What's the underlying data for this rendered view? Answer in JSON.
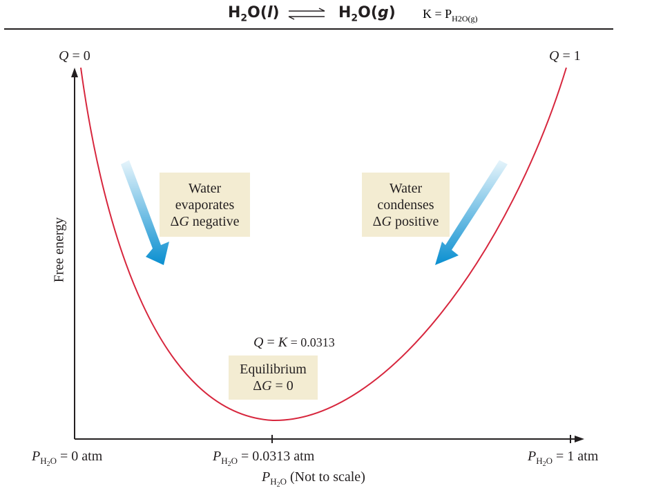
{
  "equation": {
    "reactant": "H",
    "reactant_sub": "2",
    "reactant_rest": "O(",
    "reactant_phase": "l",
    "reactant_close": ")",
    "product": "H",
    "product_sub": "2",
    "product_rest": "O(",
    "product_phase": "g",
    "product_close": ")"
  },
  "k_expression": {
    "text": "K = P",
    "subscript": "H2O(g)"
  },
  "top_labels": {
    "left_q": "Q",
    "left_eq": " = 0",
    "right_q": "Q",
    "right_eq": " = 1"
  },
  "boxes": {
    "evaporates": {
      "line1": "Water",
      "line2": "evaporates",
      "line3_delta": "Δ",
      "line3_g": "G",
      "line3_rest": " negative"
    },
    "condenses": {
      "line1": "Water",
      "line2": "condenses",
      "line3_delta": "Δ",
      "line3_g": "G",
      "line3_rest": " positive"
    },
    "equilibrium": {
      "line1": "Equilibrium",
      "line2_delta": "Δ",
      "line2_g": "G",
      "line2_rest": " = 0"
    }
  },
  "qk_label": {
    "q": "Q",
    "eq": " = ",
    "k": "K",
    "value": " = 0.0313"
  },
  "y_axis_label": "Free energy",
  "x_ticks": [
    {
      "p": "P",
      "sub1": "H",
      "sub2": "2",
      "sub3": "O",
      "value": " = 0 atm"
    },
    {
      "p": "P",
      "sub1": "H",
      "sub2": "2",
      "sub3": "O",
      "value": " = 0.0313 atm"
    },
    {
      "p": "P",
      "sub1": "H",
      "sub2": "2",
      "sub3": "O",
      "value": " = 1 atm"
    }
  ],
  "x_axis_label": {
    "p": "P",
    "sub1": "H",
    "sub2": "2",
    "sub3": "O",
    "rest": " (Not to scale)"
  },
  "colors": {
    "curve": "#d7263d",
    "arrow_dark": "#0a8fd0",
    "arrow_light": "#e6f4fb",
    "box_fill": "#f3ecd2",
    "axis": "#231f20"
  }
}
